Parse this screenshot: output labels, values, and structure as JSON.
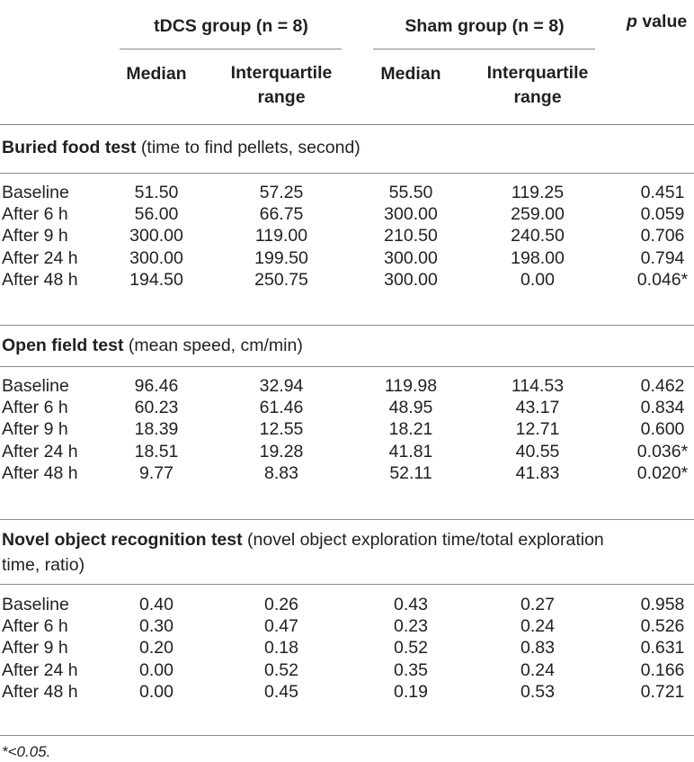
{
  "header": {
    "tdcs_group": "tDCS group (n = 8)",
    "sham_group": "Sham group (n = 8)",
    "p_value_italic": "p",
    "p_value_rest": " value",
    "median": "Median",
    "iqr": "Interquartile range"
  },
  "sections": [
    {
      "title_bold": "Buried food test",
      "title_rest": " (time to find pellets, second)",
      "rows": [
        {
          "label": "Baseline",
          "tdcs_median": "51.50",
          "tdcs_iqr": "57.25",
          "sham_median": "55.50",
          "sham_iqr": "119.25",
          "p": "0.451"
        },
        {
          "label": "After 6 h",
          "tdcs_median": "56.00",
          "tdcs_iqr": "66.75",
          "sham_median": "300.00",
          "sham_iqr": "259.00",
          "p": "0.059"
        },
        {
          "label": "After 9 h",
          "tdcs_median": "300.00",
          "tdcs_iqr": "119.00",
          "sham_median": "210.50",
          "sham_iqr": "240.50",
          "p": "0.706"
        },
        {
          "label": "After 24 h",
          "tdcs_median": "300.00",
          "tdcs_iqr": "199.50",
          "sham_median": "300.00",
          "sham_iqr": "198.00",
          "p": "0.794"
        },
        {
          "label": "After 48 h",
          "tdcs_median": "194.50",
          "tdcs_iqr": "250.75",
          "sham_median": "300.00",
          "sham_iqr": "0.00",
          "p": "0.046*"
        }
      ]
    },
    {
      "title_bold": "Open field test",
      "title_rest": " (mean speed, cm/min)",
      "rows": [
        {
          "label": "Baseline",
          "tdcs_median": "96.46",
          "tdcs_iqr": "32.94",
          "sham_median": "119.98",
          "sham_iqr": "114.53",
          "p": "0.462"
        },
        {
          "label": "After 6 h",
          "tdcs_median": "60.23",
          "tdcs_iqr": "61.46",
          "sham_median": "48.95",
          "sham_iqr": "43.17",
          "p": "0.834"
        },
        {
          "label": "After 9 h",
          "tdcs_median": "18.39",
          "tdcs_iqr": "12.55",
          "sham_median": "18.21",
          "sham_iqr": "12.71",
          "p": "0.600"
        },
        {
          "label": "After 24 h",
          "tdcs_median": "18.51",
          "tdcs_iqr": "19.28",
          "sham_median": "41.81",
          "sham_iqr": "40.55",
          "p": "0.036*"
        },
        {
          "label": "After 48 h",
          "tdcs_median": "9.77",
          "tdcs_iqr": "8.83",
          "sham_median": "52.11",
          "sham_iqr": "41.83",
          "p": "0.020*"
        }
      ]
    },
    {
      "title_bold": "Novel object recognition test",
      "title_rest": " (novel object exploration time/total exploration",
      "title_line2": "time, ratio)",
      "rows": [
        {
          "label": "Baseline",
          "tdcs_median": "0.40",
          "tdcs_iqr": "0.26",
          "sham_median": "0.43",
          "sham_iqr": "0.27",
          "p": "0.958"
        },
        {
          "label": "After 6 h",
          "tdcs_median": "0.30",
          "tdcs_iqr": "0.47",
          "sham_median": "0.23",
          "sham_iqr": "0.24",
          "p": "0.526"
        },
        {
          "label": "After 9 h",
          "tdcs_median": "0.20",
          "tdcs_iqr": "0.18",
          "sham_median": "0.52",
          "sham_iqr": "0.83",
          "p": "0.631"
        },
        {
          "label": "After 24 h",
          "tdcs_median": "0.00",
          "tdcs_iqr": "0.52",
          "sham_median": "0.35",
          "sham_iqr": "0.24",
          "p": "0.166"
        },
        {
          "label": "After 48 h",
          "tdcs_median": "0.00",
          "tdcs_iqr": "0.45",
          "sham_median": "0.19",
          "sham_iqr": "0.53",
          "p": "0.721"
        }
      ]
    }
  ],
  "footnote": "*<0.05."
}
